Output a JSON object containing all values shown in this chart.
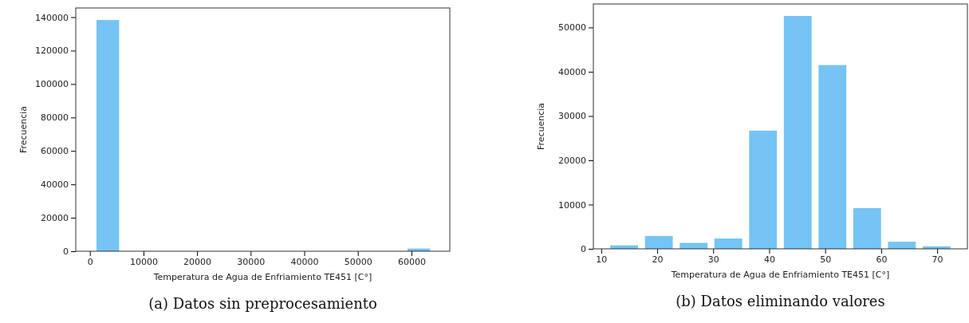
{
  "chart_data": [
    {
      "type": "histogram",
      "xlabel": "Temperatura de Agua de Enfriamiento TE451 [C°]",
      "ylabel": "Frecuencia",
      "bins": [
        700,
        5975,
        11250,
        16525,
        21800,
        27075,
        32350,
        37625,
        42900,
        48175,
        53450,
        58725,
        64000
      ],
      "values": [
        138300,
        0,
        0,
        0,
        0,
        0,
        0,
        0,
        0,
        0,
        0,
        1600
      ],
      "color": "#75c4f4",
      "xlim": [
        -2640,
        67160
      ],
      "ylim": [
        0,
        145500
      ],
      "xticks": [
        0,
        10000,
        20000,
        30000,
        40000,
        50000,
        60000
      ],
      "yticks": [
        0,
        20000,
        40000,
        60000,
        80000,
        100000,
        120000,
        140000
      ],
      "annotations": [
        "(a) Datos sin preprocesamiento"
      ]
    },
    {
      "type": "histogram",
      "xlabel": "Temperatura de Agua de Enfriamiento TE451 [C°]",
      "ylabel": "Frecuencia",
      "bins": [
        11,
        17.2,
        23.4,
        29.6,
        35.8,
        42,
        48.2,
        54.4,
        60.6,
        66.8,
        73
      ],
      "values": [
        780,
        2900,
        1340,
        2330,
        26700,
        52600,
        41500,
        9200,
        1600,
        560
      ],
      "color": "#75c4f4",
      "xlim": [
        8.6,
        75.4
      ],
      "ylim": [
        0,
        55300
      ],
      "xticks": [
        10,
        20,
        30,
        40,
        50,
        60,
        70
      ],
      "yticks": [
        0,
        10000,
        20000,
        30000,
        40000,
        50000
      ],
      "annotations": [
        "(b) Datos eliminando valores"
      ]
    }
  ]
}
